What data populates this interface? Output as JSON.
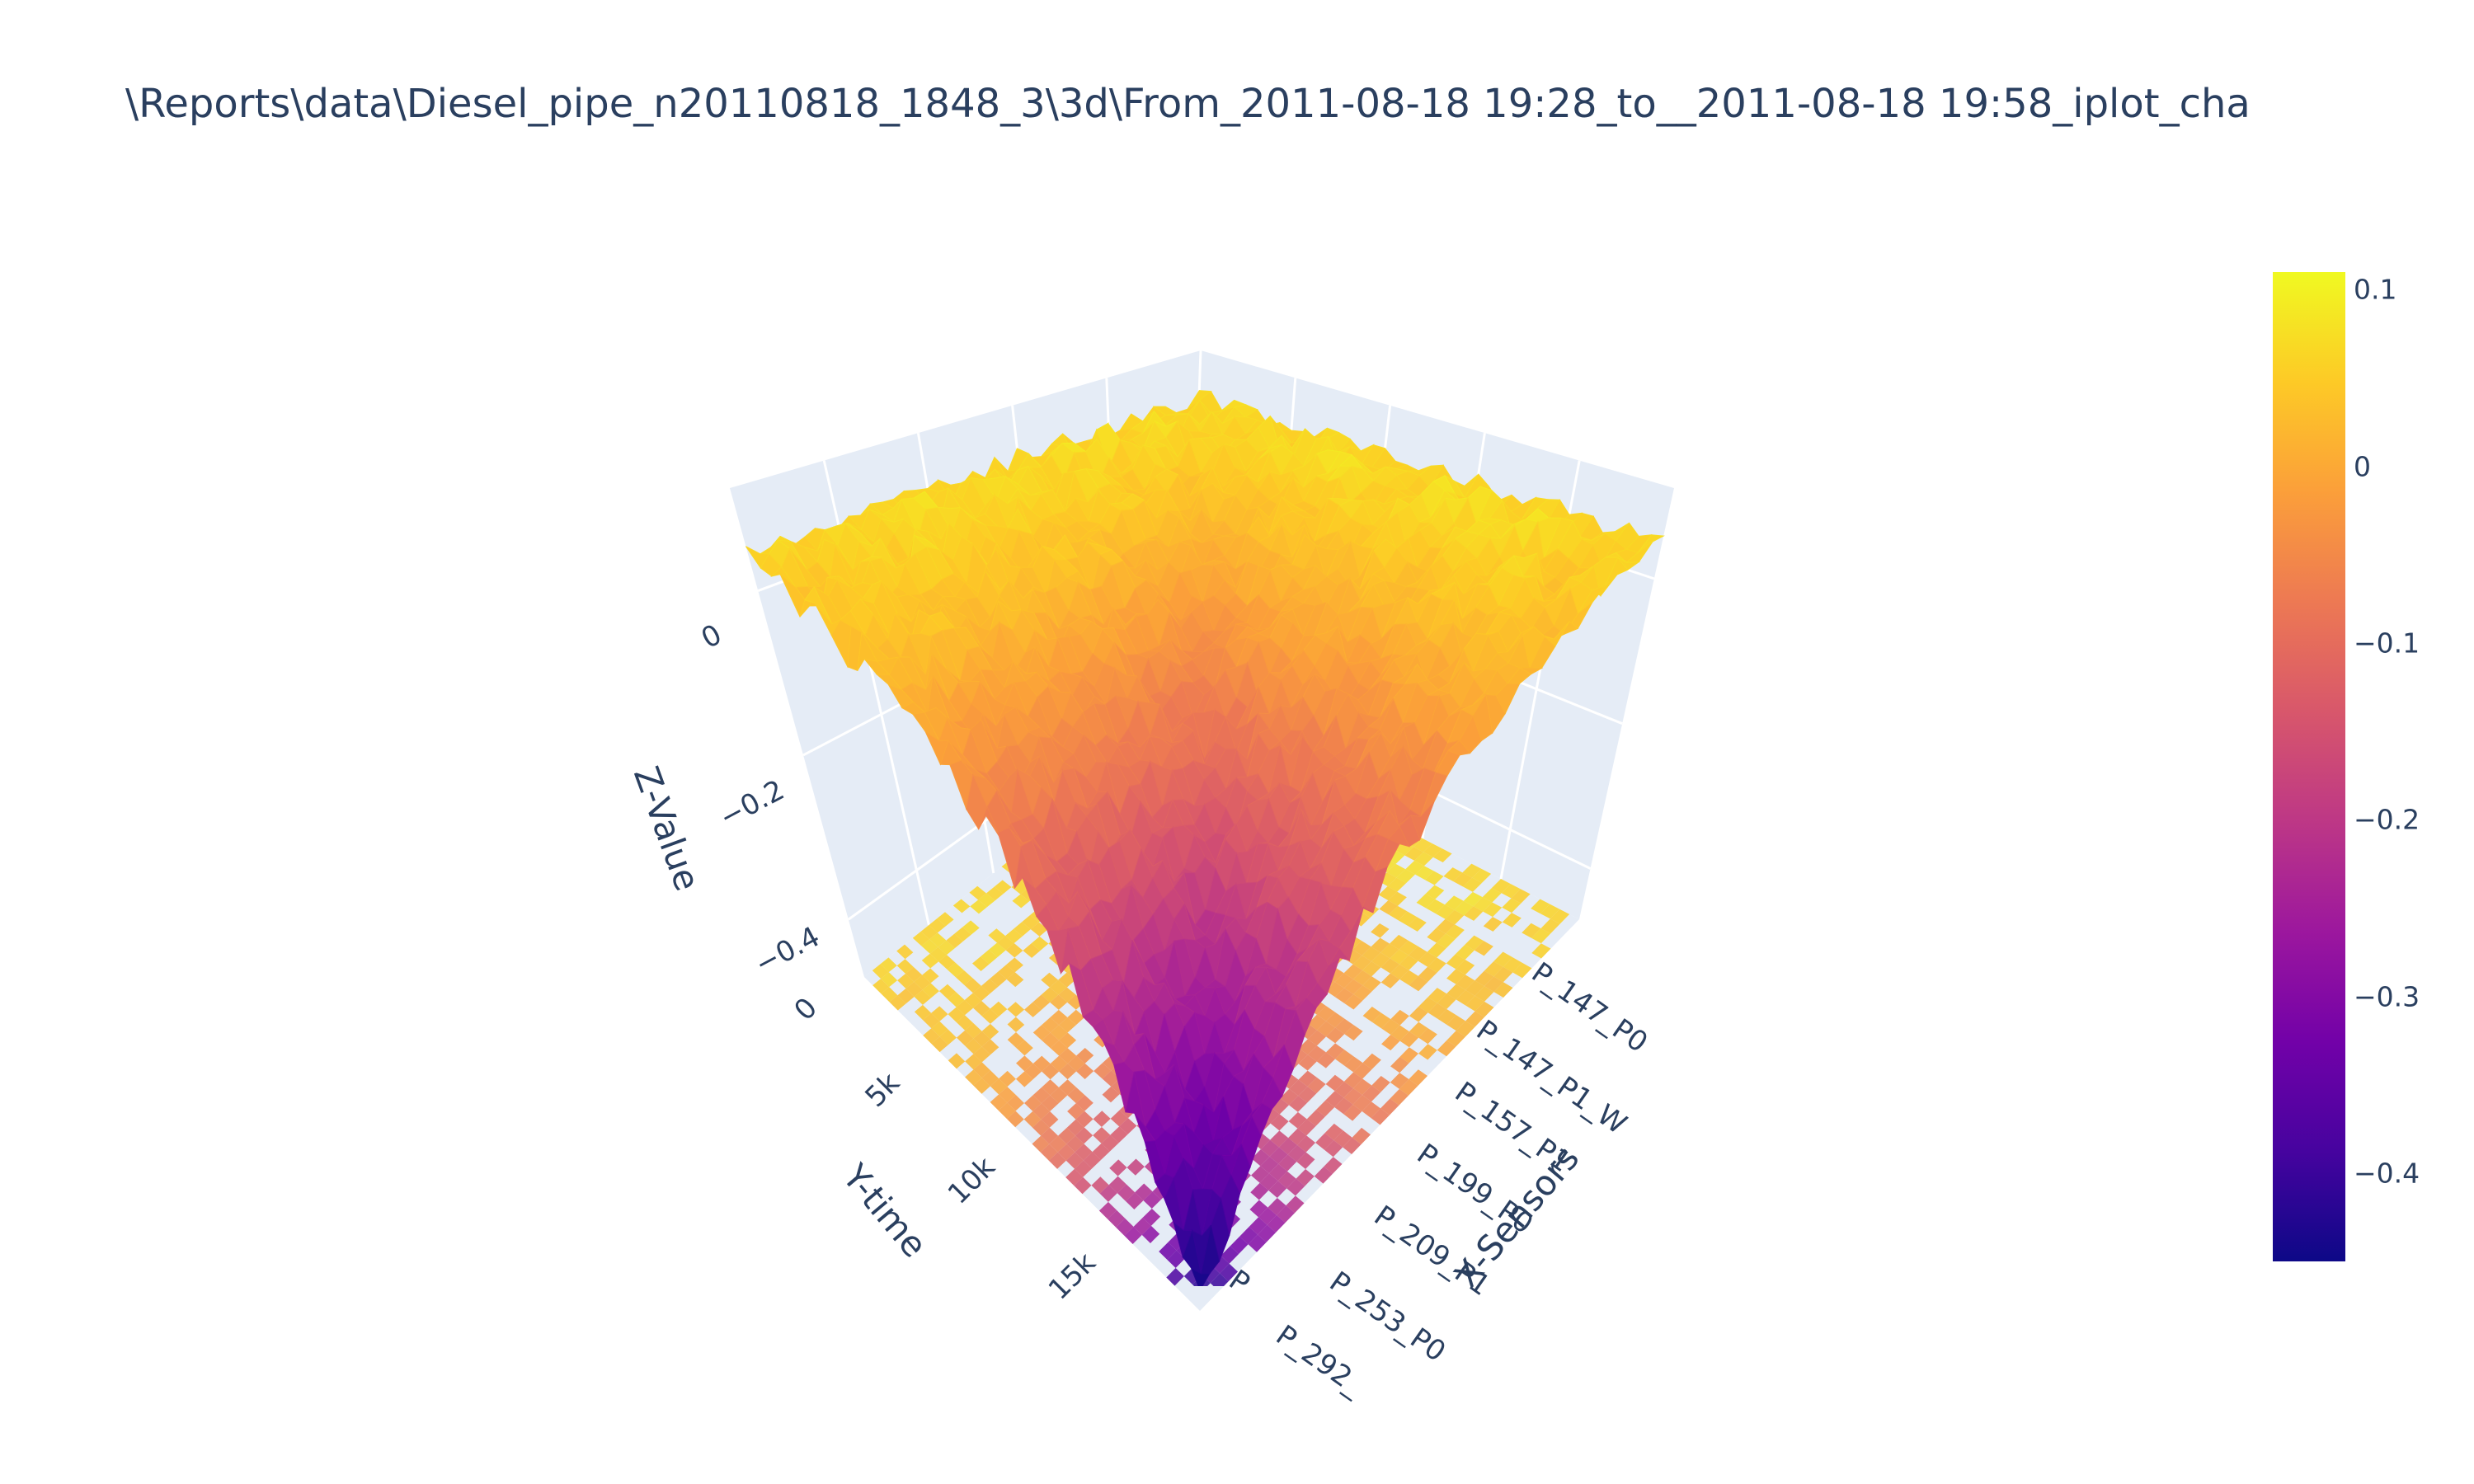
{
  "title": "\\Reports\\data\\Diesel_pipe_n20110818_1848_3\\3d\\From_2011-08-18 19:28_to__2011-08-18 19:58_iplot_cha",
  "chart_data": {
    "type": "surface",
    "title": "\\Reports\\data\\Diesel_pipe_n20110818_1848_3\\3d\\From_2011-08-18 19:28_to__2011-08-18 19:58_iplot_cha",
    "xlabel": "X-Sensors",
    "ylabel": "Y-time",
    "zlabel": "Z-Value",
    "x_categories": [
      "P_147_P0",
      "P_147_P1_W",
      "P_157_P1",
      "P_199_P0",
      "P_209_P1",
      "P_253_P0",
      "P_292_",
      "P"
    ],
    "y_ticks": [
      "0",
      "5k",
      "10k",
      "15k"
    ],
    "z_ticks": [
      "0",
      "−0.2",
      "−0.4"
    ],
    "zlim": [
      -0.45,
      0.1
    ],
    "surface_profile": {
      "description_values_by_sensor": [
        0.06,
        0.05,
        0.02,
        -0.05,
        -0.12,
        -0.22,
        -0.35,
        -0.44
      ],
      "rear_edge_level": 0.07
    },
    "projection_on_floor": true,
    "colorscale": [
      "#0d0887",
      "#46039f",
      "#7201a8",
      "#9c179e",
      "#bd3786",
      "#d8576b",
      "#ed7953",
      "#fb9f3a",
      "#fdca26",
      "#f0f921"
    ],
    "colorbar": {
      "ticks": [
        "0.1",
        "0",
        "−0.1",
        "−0.2",
        "−0.3",
        "−0.4"
      ],
      "tick_values": [
        0.1,
        0,
        -0.1,
        -0.2,
        -0.3,
        -0.4
      ],
      "range": [
        -0.45,
        0.11
      ]
    },
    "grid": true,
    "background_color": "#e5ecf6"
  }
}
